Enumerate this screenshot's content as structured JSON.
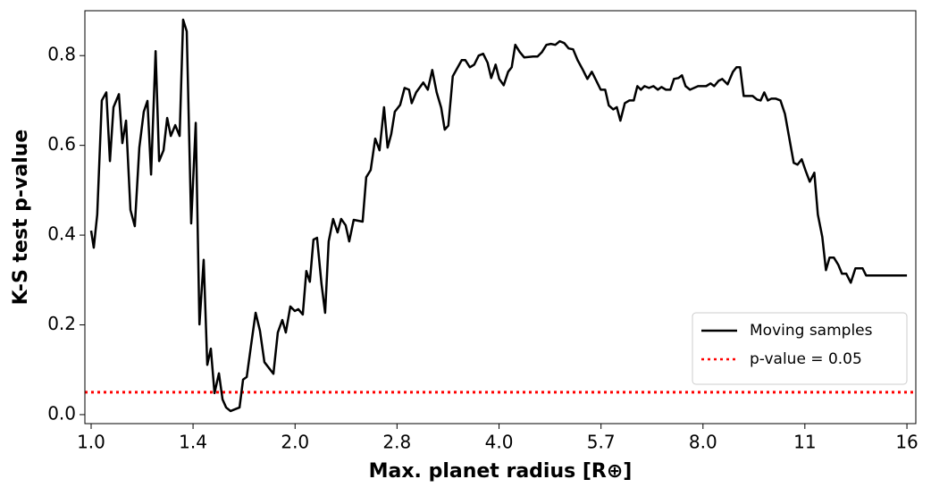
{
  "chart_data": {
    "type": "line",
    "xlabel": "Max. planet radius [R⊕]",
    "ylabel": "K-S test p-value",
    "xscale": "log",
    "xlim": [
      0.979,
      16.49
    ],
    "ylim": [
      -0.02,
      0.9
    ],
    "xticks": [
      {
        "value": 1,
        "label": "1.0"
      },
      {
        "value": 1.414,
        "label": "1.4"
      },
      {
        "value": 2,
        "label": "2.0"
      },
      {
        "value": 2.828,
        "label": "2.8"
      },
      {
        "value": 4,
        "label": "4.0"
      },
      {
        "value": 5.657,
        "label": "5.7"
      },
      {
        "value": 8,
        "label": "8.0"
      },
      {
        "value": 11.31,
        "label": "11"
      },
      {
        "value": 16,
        "label": "16"
      }
    ],
    "yticks": [
      {
        "value": 0,
        "label": "0.0"
      },
      0.2,
      0.4,
      0.6,
      0.8
    ],
    "grid": false,
    "legend": "lower right",
    "x": [
      1.0,
      1.009,
      1.021,
      1.037,
      1.053,
      1.066,
      1.079,
      1.099,
      1.112,
      1.126,
      1.143,
      1.16,
      1.178,
      1.196,
      1.211,
      1.226,
      1.245,
      1.26,
      1.279,
      1.295,
      1.311,
      1.331,
      1.351,
      1.367,
      1.384,
      1.405,
      1.427,
      1.445,
      1.466,
      1.484,
      1.502,
      1.521,
      1.544,
      1.563,
      1.582,
      1.606,
      1.656,
      1.676,
      1.697,
      1.723,
      1.749,
      1.775,
      1.802,
      1.858,
      1.886,
      1.915,
      1.938,
      1.968,
      1.998,
      2.022,
      2.053,
      2.078,
      2.103,
      2.129,
      2.155,
      2.188,
      2.215,
      2.242,
      2.276,
      2.311,
      2.339,
      2.375,
      2.404,
      2.441,
      2.516,
      2.547,
      2.586,
      2.626,
      2.665,
      2.706,
      2.739,
      2.773,
      2.807,
      2.858,
      2.902,
      2.946,
      2.973,
      3.018,
      3.092,
      3.14,
      3.188,
      3.236,
      3.286,
      3.326,
      3.367,
      3.418,
      3.524,
      3.567,
      3.622,
      3.677,
      3.733,
      3.79,
      3.848,
      3.895,
      3.954,
      4.003,
      4.064,
      4.126,
      4.176,
      4.227,
      4.292,
      4.357,
      4.491,
      4.559,
      4.629,
      4.699,
      4.771,
      4.843,
      4.917,
      4.992,
      5.068,
      5.145,
      5.224,
      5.32,
      5.401,
      5.483,
      5.567,
      5.651,
      5.738,
      5.808,
      5.897,
      5.969,
      6.042,
      6.134,
      6.228,
      6.323,
      6.401,
      6.479,
      6.558,
      6.658,
      6.76,
      6.863,
      6.947,
      7.053,
      7.161,
      7.248,
      7.359,
      7.449,
      7.54,
      7.655,
      7.868,
      8.087,
      8.21,
      8.311,
      8.438,
      8.541,
      8.698,
      8.858,
      8.966,
      9.076,
      9.187,
      9.47,
      9.615,
      9.733,
      9.852,
      9.972,
      10.09,
      10.25,
      10.41,
      10.57,
      10.73,
      10.89,
      11.03,
      11.19,
      11.33,
      11.5,
      11.68,
      11.82,
      12.0,
      12.15,
      12.3,
      12.48,
      12.67,
      12.83,
      13.02,
      13.22,
      13.43,
      13.76,
      13.93,
      16.0
    ],
    "series": [
      {
        "name": "Moving samples",
        "color": "#000000",
        "values": [
          0.41,
          0.372,
          0.446,
          0.7,
          0.718,
          0.565,
          0.685,
          0.714,
          0.605,
          0.655,
          0.456,
          0.42,
          0.595,
          0.675,
          0.699,
          0.535,
          0.81,
          0.565,
          0.589,
          0.661,
          0.621,
          0.645,
          0.621,
          0.88,
          0.854,
          0.426,
          0.65,
          0.201,
          0.345,
          0.111,
          0.147,
          0.048,
          0.092,
          0.034,
          0.016,
          0.008,
          0.016,
          0.078,
          0.084,
          0.157,
          0.227,
          0.187,
          0.117,
          0.091,
          0.183,
          0.211,
          0.183,
          0.241,
          0.231,
          0.235,
          0.223,
          0.32,
          0.296,
          0.39,
          0.394,
          0.291,
          0.227,
          0.386,
          0.436,
          0.406,
          0.436,
          0.422,
          0.386,
          0.434,
          0.43,
          0.529,
          0.545,
          0.615,
          0.589,
          0.685,
          0.595,
          0.625,
          0.675,
          0.69,
          0.728,
          0.724,
          0.694,
          0.718,
          0.74,
          0.724,
          0.768,
          0.718,
          0.684,
          0.635,
          0.644,
          0.754,
          0.79,
          0.79,
          0.774,
          0.78,
          0.8,
          0.804,
          0.784,
          0.75,
          0.78,
          0.748,
          0.734,
          0.764,
          0.774,
          0.824,
          0.808,
          0.796,
          0.798,
          0.798,
          0.808,
          0.824,
          0.826,
          0.824,
          0.832,
          0.828,
          0.816,
          0.814,
          0.79,
          0.768,
          0.748,
          0.764,
          0.744,
          0.724,
          0.724,
          0.689,
          0.68,
          0.685,
          0.655,
          0.694,
          0.7,
          0.7,
          0.732,
          0.724,
          0.732,
          0.728,
          0.732,
          0.724,
          0.73,
          0.724,
          0.724,
          0.748,
          0.75,
          0.756,
          0.732,
          0.724,
          0.732,
          0.732,
          0.738,
          0.732,
          0.744,
          0.748,
          0.736,
          0.764,
          0.774,
          0.774,
          0.71,
          0.71,
          0.702,
          0.7,
          0.718,
          0.7,
          0.704,
          0.704,
          0.7,
          0.67,
          0.615,
          0.561,
          0.557,
          0.569,
          0.545,
          0.519,
          0.539,
          0.446,
          0.396,
          0.322,
          0.35,
          0.35,
          0.334,
          0.314,
          0.314,
          0.294,
          0.326,
          0.326,
          0.31,
          0.31
        ]
      }
    ],
    "hlines": [
      {
        "name": "p-value = 0.05",
        "value": 0.05,
        "color": "#ff0000",
        "style": "dotted"
      }
    ]
  }
}
